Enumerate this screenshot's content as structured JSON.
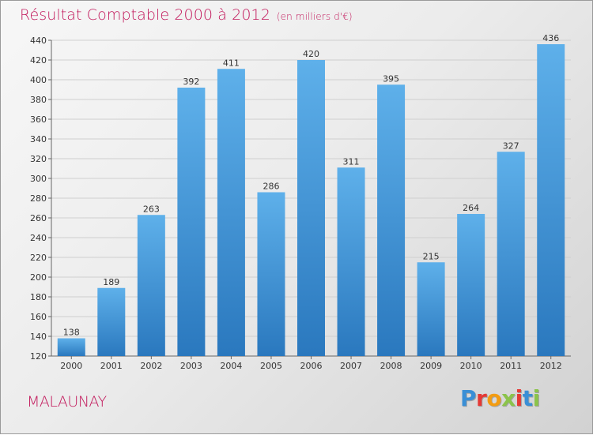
{
  "header": {
    "title": "Résultat Comptable 2000 à 2012",
    "subtitle": "(en milliers d'€)"
  },
  "footer": {
    "commune": "MALAUNAY",
    "logo_text": "Proxiti",
    "logo_colors": [
      "#3a8fd6",
      "#e53935",
      "#f39c12",
      "#8bc34a",
      "#e53935",
      "#3a8fd6",
      "#8bc34a"
    ]
  },
  "colors": {
    "bar_light": "#5eb0ea",
    "bar_dark": "#2a78be",
    "title": "#c2185b"
  },
  "chart_data": {
    "type": "bar",
    "categories": [
      "2000",
      "2001",
      "2002",
      "2003",
      "2004",
      "2005",
      "2006",
      "2007",
      "2008",
      "2009",
      "2010",
      "2011",
      "2012"
    ],
    "values": [
      138,
      189,
      263,
      392,
      411,
      286,
      420,
      311,
      395,
      215,
      264,
      327,
      436
    ],
    "ylim": [
      120,
      440
    ],
    "yticks": [
      120,
      140,
      160,
      180,
      200,
      220,
      240,
      260,
      280,
      300,
      320,
      340,
      360,
      380,
      400,
      420,
      440
    ],
    "grid": true,
    "xlabel": "",
    "ylabel": ""
  }
}
